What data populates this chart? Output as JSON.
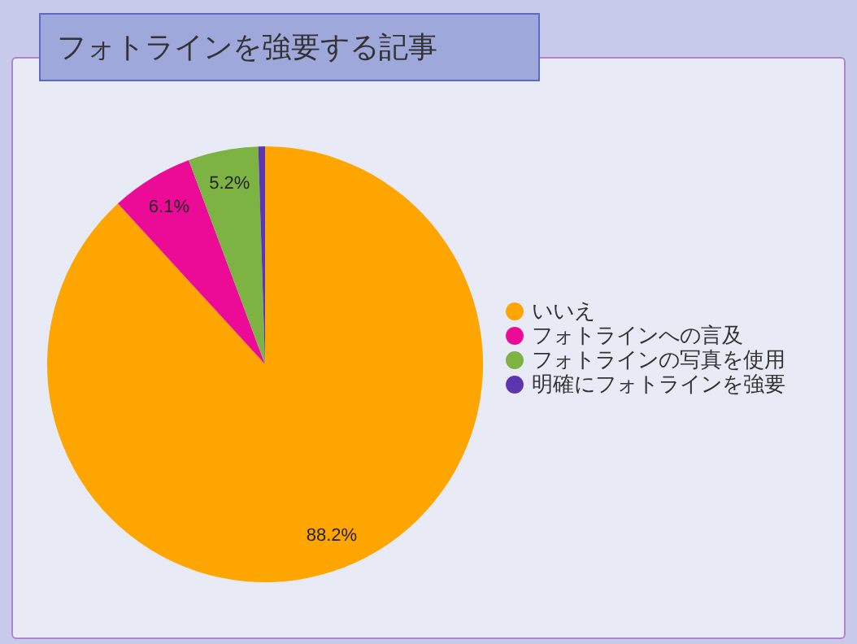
{
  "chart_data": {
    "type": "pie",
    "title": "フォトラインを強要する記事",
    "categories": [
      "いいえ",
      "フォトラインへの言及",
      "フォトラインの写真を使用",
      "明確にフォトラインを強要"
    ],
    "values": [
      88.2,
      6.1,
      5.2,
      0.5
    ],
    "colors": [
      "#ffa500",
      "#ec0b97",
      "#7cb342",
      "#5e35b1"
    ],
    "value_labels": [
      "88.2%",
      "6.1%",
      "5.2%",
      null
    ],
    "legend": "right"
  }
}
